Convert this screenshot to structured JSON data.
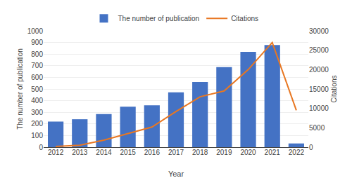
{
  "chart_data": {
    "type": "bar",
    "xlabel": "Year",
    "ylabel": "The number of publication",
    "y2label": "Citations",
    "categories": [
      "2012",
      "2013",
      "2014",
      "2015",
      "2016",
      "2017",
      "2018",
      "2019",
      "2020",
      "2021",
      "2022"
    ],
    "series": [
      {
        "name": "The number of publication",
        "type": "bar",
        "color": "#4472C4",
        "values": [
          220,
          240,
          285,
          348,
          360,
          472,
          560,
          688,
          820,
          878,
          32
        ]
      },
      {
        "name": "Citations",
        "type": "line",
        "color": "#E87722",
        "axis": "y2",
        "values": [
          200,
          500,
          1800,
          3500,
          5200,
          9200,
          13000,
          14500,
          20000,
          27000,
          9500
        ]
      }
    ],
    "ylim": [
      0,
      1000
    ],
    "yticks": [
      0,
      100,
      200,
      300,
      400,
      500,
      600,
      700,
      800,
      900,
      1000
    ],
    "y2lim": [
      0,
      30000
    ],
    "y2ticks": [
      0,
      5000,
      10000,
      15000,
      20000,
      25000,
      30000
    ],
    "grid": true,
    "legend": "top"
  }
}
